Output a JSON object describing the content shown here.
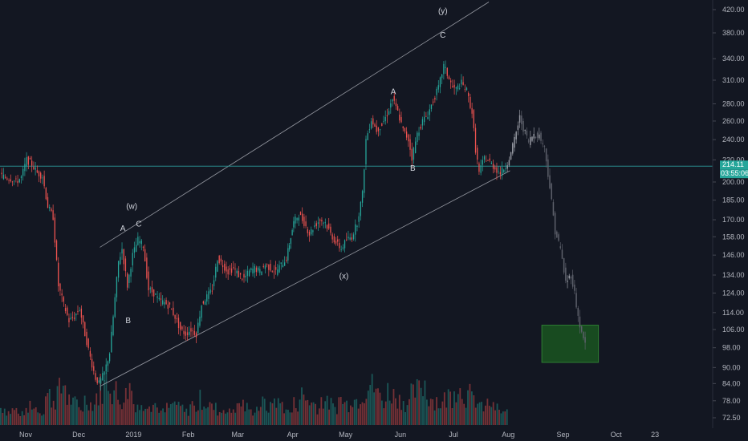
{
  "chart_data": {
    "type": "candlestick",
    "title": "",
    "y_scale": "log",
    "y_ticks": [
      "420.00",
      "380.00",
      "340.00",
      "310.00",
      "280.00",
      "260.00",
      "240.00",
      "220.00",
      "200.00",
      "185.00",
      "170.00",
      "158.00",
      "146.00",
      "134.00",
      "124.00",
      "114.00",
      "106.00",
      "98.00",
      "90.00",
      "84.00",
      "78.00",
      "72.50"
    ],
    "x_ticks": [
      "Nov",
      "Dec",
      "2019",
      "Feb",
      "Mar",
      "Apr",
      "May",
      "Jun",
      "Jul",
      "Aug",
      "Sep",
      "Oct",
      "23"
    ],
    "current_price": "214.11",
    "countdown": "03:55:06",
    "wave_labels": [
      {
        "text": "(w)",
        "x": "2018-12-31",
        "y": 178
      },
      {
        "text": "A",
        "x": "2018-12-26",
        "y": 162
      },
      {
        "text": "B",
        "x": "2018-12-29",
        "y": 109
      },
      {
        "text": "C",
        "x": "2019-01-04",
        "y": 165
      },
      {
        "text": "(x)",
        "x": "2019-04-30",
        "y": 132
      },
      {
        "text": "A",
        "x": "2019-05-28",
        "y": 292
      },
      {
        "text": "B",
        "x": "2019-06-08",
        "y": 210
      },
      {
        "text": "(y)",
        "x": "2019-06-25",
        "y": 413
      },
      {
        "text": "C",
        "x": "2019-06-25",
        "y": 372
      }
    ],
    "channel_upper": [
      [
        "2018-12-13",
        151
      ],
      [
        "2019-07-21",
        434
      ]
    ],
    "channel_lower": [
      [
        "2018-12-13",
        83
      ],
      [
        "2019-08-02",
        210
      ]
    ],
    "target_zone": {
      "x0": "2019-08-20",
      "x1": "2019-09-21",
      "y0": 92,
      "y1": 108
    },
    "price_path": [
      [
        "2018-10-18",
        206
      ],
      [
        "2018-10-21",
        204
      ],
      [
        "2018-10-24",
        203
      ],
      [
        "2018-10-27",
        200
      ],
      [
        "2018-10-30",
        204
      ],
      [
        "2018-11-02",
        220
      ],
      [
        "2018-11-05",
        216
      ],
      [
        "2018-11-08",
        208
      ],
      [
        "2018-11-11",
        205
      ],
      [
        "2018-11-14",
        180
      ],
      [
        "2018-11-17",
        172
      ],
      [
        "2018-11-20",
        128
      ],
      [
        "2018-11-23",
        118
      ],
      [
        "2018-11-26",
        110
      ],
      [
        "2018-11-29",
        112
      ],
      [
        "2018-12-02",
        116
      ],
      [
        "2018-12-05",
        104
      ],
      [
        "2018-12-08",
        94
      ],
      [
        "2018-12-11",
        86
      ],
      [
        "2018-12-13",
        84
      ],
      [
        "2018-12-16",
        88
      ],
      [
        "2018-12-19",
        96
      ],
      [
        "2018-12-21",
        112
      ],
      [
        "2018-12-24",
        142
      ],
      [
        "2018-12-26",
        150
      ],
      [
        "2018-12-29",
        128
      ],
      [
        "2019-01-01",
        146
      ],
      [
        "2019-01-04",
        156
      ],
      [
        "2019-01-07",
        152
      ],
      [
        "2019-01-10",
        126
      ],
      [
        "2019-01-13",
        124
      ],
      [
        "2019-01-16",
        120
      ],
      [
        "2019-01-19",
        119
      ],
      [
        "2019-01-22",
        117
      ],
      [
        "2019-01-25",
        112
      ],
      [
        "2019-01-28",
        106
      ],
      [
        "2019-01-31",
        104
      ],
      [
        "2019-02-03",
        106
      ],
      [
        "2019-02-06",
        104
      ],
      [
        "2019-02-09",
        118
      ],
      [
        "2019-02-12",
        122
      ],
      [
        "2019-02-15",
        126
      ],
      [
        "2019-02-18",
        144
      ],
      [
        "2019-02-21",
        140
      ],
      [
        "2019-02-24",
        136
      ],
      [
        "2019-02-27",
        138
      ],
      [
        "2019-03-02",
        134
      ],
      [
        "2019-03-05",
        132
      ],
      [
        "2019-03-08",
        136
      ],
      [
        "2019-03-11",
        138
      ],
      [
        "2019-03-14",
        136
      ],
      [
        "2019-03-17",
        140
      ],
      [
        "2019-03-20",
        138
      ],
      [
        "2019-03-23",
        136
      ],
      [
        "2019-03-26",
        140
      ],
      [
        "2019-03-29",
        144
      ],
      [
        "2019-04-02",
        168
      ],
      [
        "2019-04-05",
        174
      ],
      [
        "2019-04-08",
        168
      ],
      [
        "2019-04-11",
        160
      ],
      [
        "2019-04-14",
        166
      ],
      [
        "2019-04-17",
        170
      ],
      [
        "2019-04-20",
        168
      ],
      [
        "2019-04-23",
        160
      ],
      [
        "2019-04-26",
        154
      ],
      [
        "2019-04-29",
        150
      ],
      [
        "2019-05-02",
        156
      ],
      [
        "2019-05-05",
        158
      ],
      [
        "2019-05-08",
        168
      ],
      [
        "2019-05-11",
        190
      ],
      [
        "2019-05-13",
        240
      ],
      [
        "2019-05-16",
        262
      ],
      [
        "2019-05-19",
        250
      ],
      [
        "2019-05-22",
        256
      ],
      [
        "2019-05-25",
        268
      ],
      [
        "2019-05-28",
        286
      ],
      [
        "2019-05-31",
        270
      ],
      [
        "2019-06-03",
        250
      ],
      [
        "2019-06-06",
        240
      ],
      [
        "2019-06-08",
        222
      ],
      [
        "2019-06-11",
        246
      ],
      [
        "2019-06-14",
        260
      ],
      [
        "2019-06-17",
        268
      ],
      [
        "2019-06-20",
        284
      ],
      [
        "2019-06-23",
        300
      ],
      [
        "2019-06-26",
        330
      ],
      [
        "2019-06-28",
        318
      ],
      [
        "2019-07-01",
        300
      ],
      [
        "2019-07-03",
        298
      ],
      [
        "2019-07-06",
        306
      ],
      [
        "2019-07-09",
        296
      ],
      [
        "2019-07-12",
        270
      ],
      [
        "2019-07-14",
        230
      ],
      [
        "2019-07-16",
        208
      ],
      [
        "2019-07-19",
        222
      ],
      [
        "2019-07-22",
        218
      ],
      [
        "2019-07-25",
        212
      ],
      [
        "2019-07-28",
        208
      ],
      [
        "2019-07-31",
        214
      ]
    ],
    "projection_path": [
      [
        "2019-07-31",
        214
      ],
      [
        "2019-08-03",
        226
      ],
      [
        "2019-08-06",
        248
      ],
      [
        "2019-08-08",
        264
      ],
      [
        "2019-08-10",
        252
      ],
      [
        "2019-08-13",
        238
      ],
      [
        "2019-08-16",
        246
      ],
      [
        "2019-08-19",
        244
      ],
      [
        "2019-08-22",
        232
      ],
      [
        "2019-08-25",
        196
      ],
      [
        "2019-08-28",
        162
      ],
      [
        "2019-08-31",
        150
      ],
      [
        "2019-09-03",
        130
      ],
      [
        "2019-09-06",
        134
      ],
      [
        "2019-09-08",
        124
      ],
      [
        "2019-09-10",
        112
      ],
      [
        "2019-09-12",
        104
      ],
      [
        "2019-09-14",
        100
      ]
    ],
    "volume_path": [
      0.3,
      0.2,
      0.25,
      0.15,
      0.2,
      0.4,
      0.3,
      0.2,
      0.6,
      0.5,
      0.7,
      0.9,
      0.5,
      0.4,
      0.3,
      0.5,
      0.4,
      0.6,
      0.8,
      1.0,
      0.7,
      0.5,
      0.6,
      0.8,
      0.4,
      0.3,
      0.5,
      0.4,
      0.3,
      0.2,
      0.3,
      0.4,
      0.3,
      0.2,
      0.4,
      0.3,
      0.5,
      0.4,
      0.3,
      0.2,
      0.3,
      0.2,
      0.3,
      0.4,
      0.3,
      0.2,
      0.3,
      0.4,
      0.3,
      0.5,
      0.4,
      0.3,
      0.2,
      0.4,
      0.6,
      0.5,
      0.4,
      0.3,
      0.5,
      0.4,
      0.3,
      0.5,
      0.4,
      0.6,
      0.5,
      0.7,
      0.9,
      0.8,
      0.6,
      0.5,
      0.7,
      0.6,
      0.5,
      0.4,
      0.6,
      0.7,
      0.9,
      0.6,
      0.5,
      0.4,
      0.5,
      0.6,
      0.9,
      0.7,
      0.6,
      0.5,
      0.4,
      0.3,
      0.4,
      0.3,
      0.2,
      0.2
    ]
  }
}
